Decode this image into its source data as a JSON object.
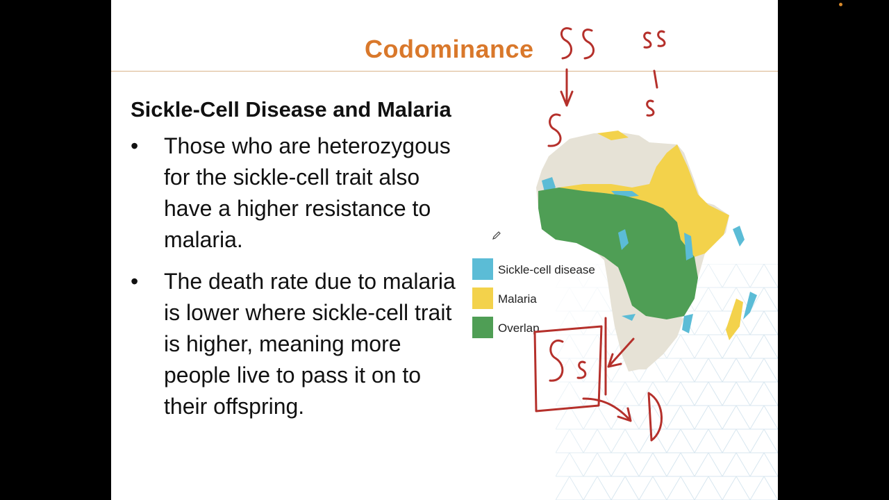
{
  "slide": {
    "title": "Codominance",
    "subtitle": "Sickle-Cell Disease and Malaria",
    "bullets": [
      {
        "marker": "•",
        "text": "Those who are heterozygous for the sickle-cell trait also have a higher resistance to malaria."
      },
      {
        "marker": "•",
        "text": "The death rate due to malaria is lower where sickle-cell trait is higher, meaning more people live to pass it on to their offspring."
      }
    ]
  },
  "legend": {
    "items": [
      {
        "label": "Sickle-cell disease",
        "color": "#5bbcd6"
      },
      {
        "label": "Malaria",
        "color": "#f3d24b"
      },
      {
        "label": "Overlap",
        "color": "#4f9e55"
      }
    ]
  },
  "map": {
    "land_color": "#e6e2d6",
    "icon": "africa-map"
  },
  "annotations": {
    "ink_color": "#b5302b",
    "genotype_top_dominant": "SS",
    "genotype_top_recessive": "ss",
    "gamete_dominant": "S",
    "gamete_recessive": "s",
    "heterozygote": "Ss",
    "arrow_result": "D"
  },
  "toolbar": {
    "pen_icon": "pencil-icon"
  }
}
